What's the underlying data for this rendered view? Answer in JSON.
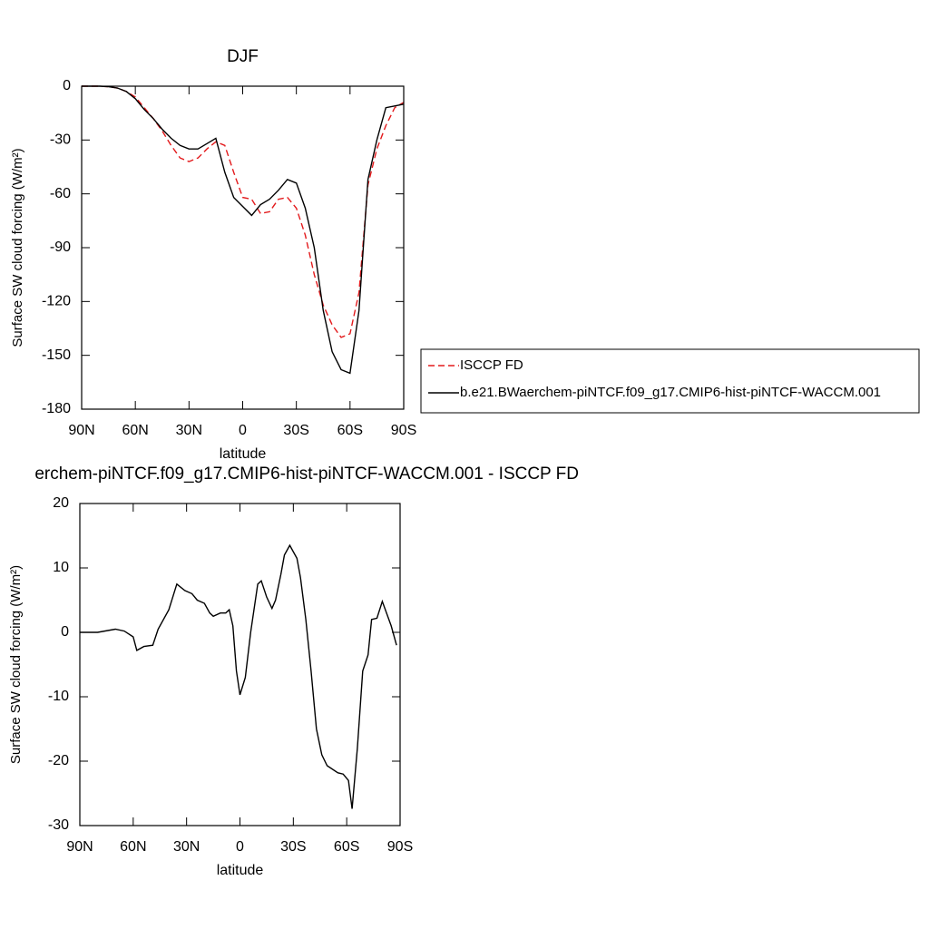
{
  "chart_data": [
    {
      "type": "line",
      "title": "DJF",
      "x_label": "latitude",
      "y_label": "Surface SW cloud forcing (W/m²)",
      "legend": "right",
      "x": [
        90,
        85,
        80,
        75,
        70,
        65,
        60,
        55,
        50,
        45,
        40,
        35,
        30,
        25,
        20,
        15,
        10,
        5,
        0,
        -5,
        -10,
        -15,
        -20,
        -25,
        -30,
        -35,
        -40,
        -45,
        -50,
        -55,
        -60,
        -65,
        -70,
        -75,
        -80,
        -85,
        -90
      ],
      "series": [
        {
          "name": "ISCCP FD",
          "color": "#e31a1c",
          "linestyle": "dashed",
          "values": [
            0,
            0,
            0,
            -0.3,
            -1,
            -3,
            -6,
            -12,
            -18,
            -25,
            -33,
            -40,
            -42,
            -40,
            -35,
            -31,
            -33,
            -48,
            -62,
            -63,
            -71,
            -70,
            -63,
            -62,
            -68,
            -83,
            -105,
            -122,
            -133,
            -140,
            -138,
            -115,
            -55,
            -35,
            -22,
            -12,
            -9
          ]
        },
        {
          "name": "b.e21.BWaerchem-piNTCF.f09_g17.CMIP6-hist-piNTCF-WACCM.001",
          "color": "#000000",
          "linestyle": "solid",
          "values": [
            0,
            0,
            0,
            -0.3,
            -1,
            -3,
            -7,
            -13,
            -18,
            -24,
            -29,
            -33,
            -35,
            -35,
            -32,
            -29,
            -48,
            -62,
            -67,
            -72,
            -66,
            -63,
            -58,
            -52,
            -54,
            -68,
            -90,
            -125,
            -148,
            -158,
            -160,
            -125,
            -52,
            -30,
            -12,
            -11,
            -10
          ]
        }
      ],
      "xlim": [
        90,
        -90
      ],
      "xticks": [
        {
          "value": 90,
          "label": "90N"
        },
        {
          "value": 60,
          "label": "60N"
        },
        {
          "value": 30,
          "label": "30N"
        },
        0,
        {
          "value": -30,
          "label": "30S"
        },
        {
          "value": -60,
          "label": "60S"
        },
        {
          "value": -90,
          "label": "90S"
        }
      ],
      "ylim": [
        -180,
        0
      ],
      "yticks": [
        0,
        -30,
        -60,
        -90,
        -120,
        -150,
        -180
      ]
    },
    {
      "type": "line",
      "title": "erchem-piNTCF.f09_g17.CMIP6-hist-piNTCF-WACCM.001 - ISCCP FD",
      "x_label": "latitude",
      "y_label": "Surface SW cloud forcing (W/m²)",
      "x": [
        90,
        80,
        70,
        65,
        60,
        58,
        54,
        49,
        46,
        40,
        35.5,
        31,
        27,
        24,
        20,
        17,
        15,
        11,
        8,
        6,
        4,
        2,
        0,
        -3,
        -6,
        -10,
        -12,
        -15,
        -18,
        -20,
        -23,
        -25,
        -28,
        -32,
        -34,
        -37,
        -40,
        -43,
        -46,
        -49,
        -55,
        -58,
        -61,
        -63,
        -66,
        -69,
        -72,
        -74,
        -77,
        -80,
        -85,
        -88
      ],
      "series": [
        {
          "name": null,
          "color": "#000000",
          "linestyle": "solid",
          "values": [
            0,
            0,
            0.5,
            0.2,
            -0.7,
            -2.8,
            -2.2,
            -2,
            0.5,
            3.5,
            7.5,
            6.5,
            6,
            5,
            4.5,
            3,
            2.5,
            3,
            3,
            3.5,
            1,
            -6,
            -9.7,
            -7,
            0,
            7.5,
            8,
            5.5,
            3.7,
            5,
            9,
            12,
            13.5,
            11.5,
            8.5,
            2,
            -6,
            -15,
            -19,
            -20.7,
            -21.8,
            -22,
            -23,
            -27.4,
            -18,
            -6,
            -3.5,
            2,
            2.2,
            4.8,
            1,
            -2
          ]
        }
      ],
      "xlim": [
        90,
        -90
      ],
      "xticks": [
        {
          "value": 90,
          "label": "90N"
        },
        {
          "value": 60,
          "label": "60N"
        },
        {
          "value": 30,
          "label": "30N"
        },
        0,
        {
          "value": -30,
          "label": "30S"
        },
        {
          "value": -60,
          "label": "60S"
        },
        {
          "value": -90,
          "label": "90S"
        }
      ],
      "ylim": [
        -30,
        20
      ],
      "yticks": [
        20,
        10,
        0,
        -10,
        -20,
        -30
      ]
    }
  ]
}
